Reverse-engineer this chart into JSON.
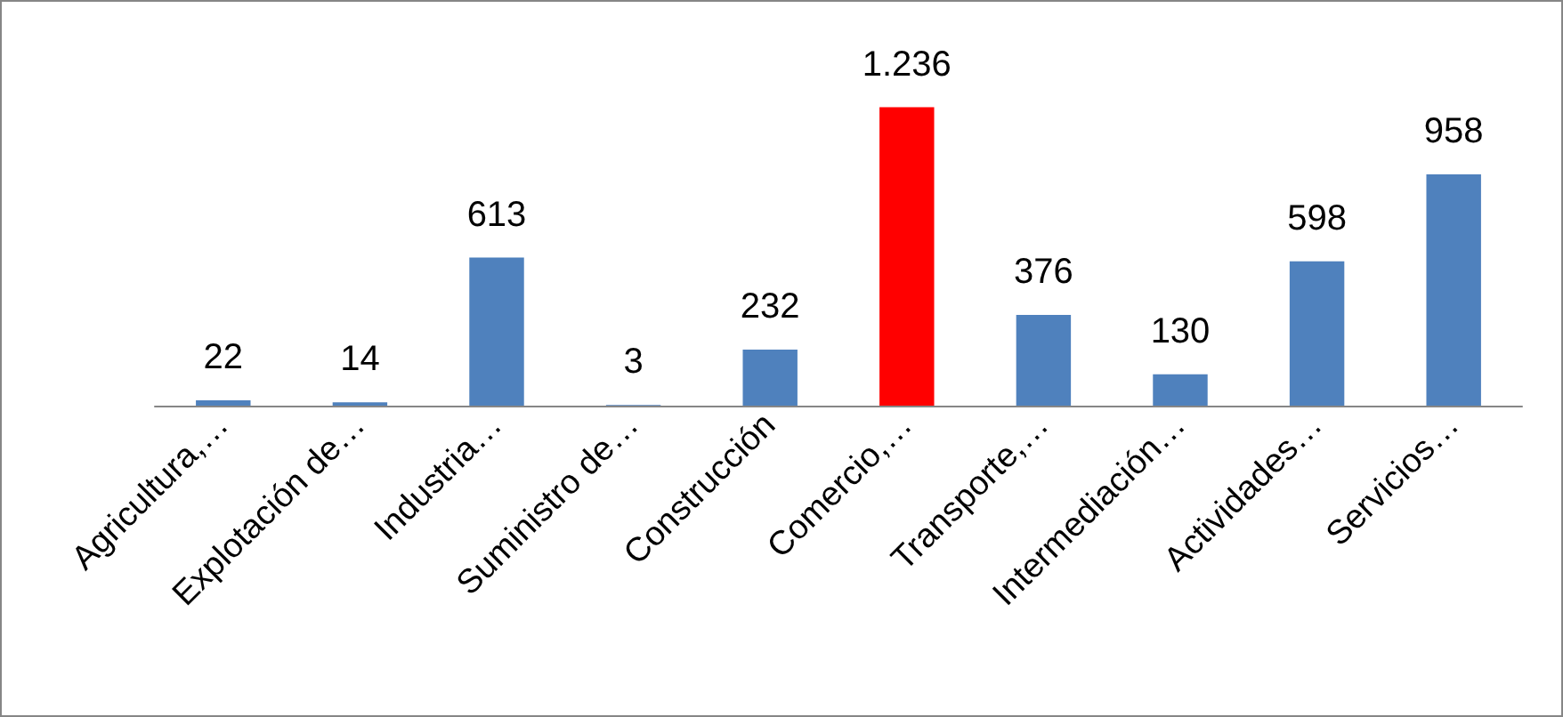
{
  "chart_data": {
    "type": "bar",
    "categories": [
      "Agricultura,…",
      "Explotación de…",
      "Industria…",
      "Suministro de…",
      "Construcción",
      "Comercio,…",
      "Transporte,…",
      "Intermediación…",
      "Actividades…",
      "Servicios…"
    ],
    "values": [
      22,
      14,
      613,
      3,
      232,
      1236,
      376,
      130,
      598,
      958
    ],
    "colors": [
      "#4f81bd",
      "#4f81bd",
      "#4f81bd",
      "#4f81bd",
      "#4f81bd",
      "#ff0000",
      "#4f81bd",
      "#4f81bd",
      "#4f81bd",
      "#4f81bd"
    ],
    "value_labels": [
      "22",
      "14",
      "613",
      "3",
      "232",
      "1.236",
      "376",
      "130",
      "598",
      "958"
    ]
  }
}
